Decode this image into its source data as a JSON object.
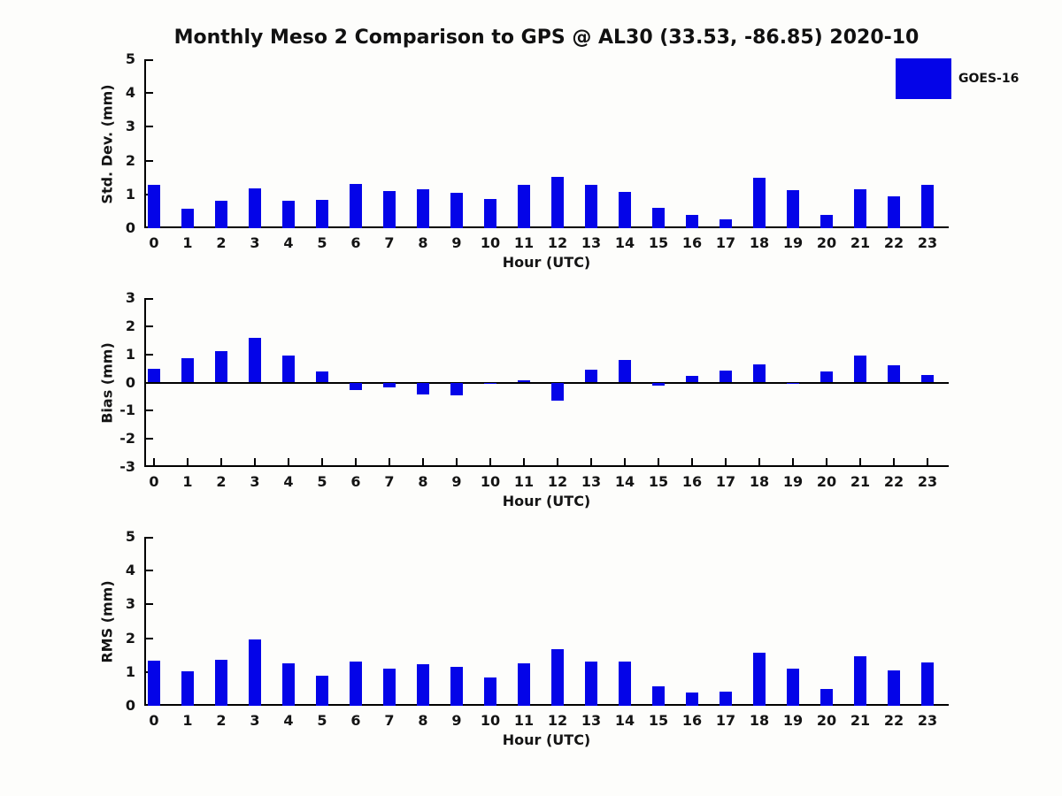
{
  "title": "Monthly Meso 2 Comparison to GPS @ AL30 (33.53, -86.85) 2020-10",
  "legend": {
    "label": "GOES-16",
    "color": "#0404e8",
    "position": "upper right"
  },
  "colors": {
    "bar": "#0404e8",
    "axis": "#000000",
    "text": "#141414",
    "background": "#fdfdfb"
  },
  "chart_data": [
    {
      "type": "bar",
      "ylabel": "Std. Dev. (mm)",
      "xlabel": "Hour (UTC)",
      "ylim": [
        0,
        5
      ],
      "yticks": [
        0,
        1,
        2,
        3,
        4,
        5
      ],
      "yticklabels": [
        "0",
        "1",
        "2",
        "3",
        "4",
        "5"
      ],
      "categories": [
        "0",
        "1",
        "2",
        "3",
        "4",
        "5",
        "6",
        "7",
        "8",
        "9",
        "10",
        "11",
        "12",
        "13",
        "14",
        "15",
        "16",
        "17",
        "18",
        "19",
        "20",
        "21",
        "22",
        "23"
      ],
      "grid": false,
      "series": [
        {
          "name": "GOES-16",
          "values": [
            1.28,
            0.58,
            0.8,
            1.17,
            0.8,
            0.84,
            1.3,
            1.1,
            1.15,
            1.05,
            0.87,
            1.27,
            1.53,
            1.28,
            1.07,
            0.6,
            0.4,
            0.26,
            1.48,
            1.13,
            0.4,
            1.15,
            0.93,
            1.27
          ]
        }
      ]
    },
    {
      "type": "bar",
      "ylabel": "Bias (mm)",
      "xlabel": "Hour (UTC)",
      "ylim": [
        -3,
        3
      ],
      "yticks": [
        -3,
        -2,
        -1,
        0,
        1,
        2,
        3
      ],
      "yticklabels": [
        "-3",
        "-2",
        "-1",
        "0",
        "1",
        "2",
        "3"
      ],
      "categories": [
        "0",
        "1",
        "2",
        "3",
        "4",
        "5",
        "6",
        "7",
        "8",
        "9",
        "10",
        "11",
        "12",
        "13",
        "14",
        "15",
        "16",
        "17",
        "18",
        "19",
        "20",
        "21",
        "22",
        "23"
      ],
      "grid": false,
      "series": [
        {
          "name": "GOES-16",
          "values": [
            0.5,
            0.85,
            1.12,
            1.58,
            0.97,
            0.38,
            -0.28,
            -0.17,
            -0.42,
            -0.45,
            -0.06,
            0.08,
            -0.65,
            0.45,
            0.8,
            -0.1,
            0.22,
            0.42,
            0.65,
            -0.06,
            0.38,
            0.97,
            0.6,
            0.26
          ]
        }
      ]
    },
    {
      "type": "bar",
      "ylabel": "RMS (mm)",
      "xlabel": "Hour (UTC)",
      "ylim": [
        0,
        5
      ],
      "yticks": [
        0,
        1,
        2,
        3,
        4,
        5
      ],
      "yticklabels": [
        "0",
        "1",
        "2",
        "3",
        "4",
        "5"
      ],
      "categories": [
        "0",
        "1",
        "2",
        "3",
        "4",
        "5",
        "6",
        "7",
        "8",
        "9",
        "10",
        "11",
        "12",
        "13",
        "14",
        "15",
        "16",
        "17",
        "18",
        "19",
        "20",
        "21",
        "22",
        "23"
      ],
      "grid": false,
      "series": [
        {
          "name": "GOES-16",
          "values": [
            1.33,
            1.01,
            1.36,
            1.96,
            1.25,
            0.88,
            1.31,
            1.09,
            1.23,
            1.14,
            0.84,
            1.26,
            1.67,
            1.32,
            1.32,
            0.58,
            0.39,
            0.43,
            1.58,
            1.11,
            0.51,
            1.46,
            1.05,
            1.27
          ]
        }
      ]
    }
  ]
}
